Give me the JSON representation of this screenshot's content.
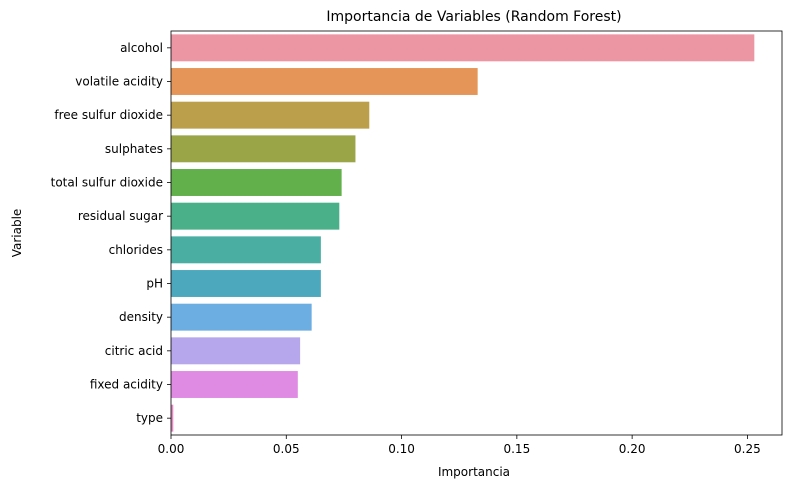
{
  "chart_data": {
    "type": "bar",
    "orientation": "horizontal",
    "title": "Importancia de Variables (Random Forest)",
    "xlabel": "Importancia",
    "ylabel": "Variable",
    "categories": [
      "alcohol",
      "volatile acidity",
      "free sulfur dioxide",
      "sulphates",
      "total sulfur dioxide",
      "residual sugar",
      "chlorides",
      "pH",
      "density",
      "citric acid",
      "fixed acidity",
      "type"
    ],
    "values": [
      0.253,
      0.133,
      0.086,
      0.08,
      0.074,
      0.073,
      0.065,
      0.065,
      0.061,
      0.056,
      0.055,
      0.001
    ],
    "colors": [
      "#ec96a3",
      "#e69558",
      "#bc9f4a",
      "#9aa548",
      "#62b04b",
      "#49b089",
      "#4baea2",
      "#4ca9bd",
      "#6cade2",
      "#b6a6ec",
      "#e08be3",
      "#e88ac4"
    ],
    "xlim": [
      0,
      0.265
    ],
    "xticks": [
      0.0,
      0.05,
      0.1,
      0.15,
      0.2,
      0.25
    ],
    "xtick_labels": [
      "0.00",
      "0.05",
      "0.10",
      "0.15",
      "0.20",
      "0.25"
    ],
    "grid": false,
    "legend": false
  }
}
